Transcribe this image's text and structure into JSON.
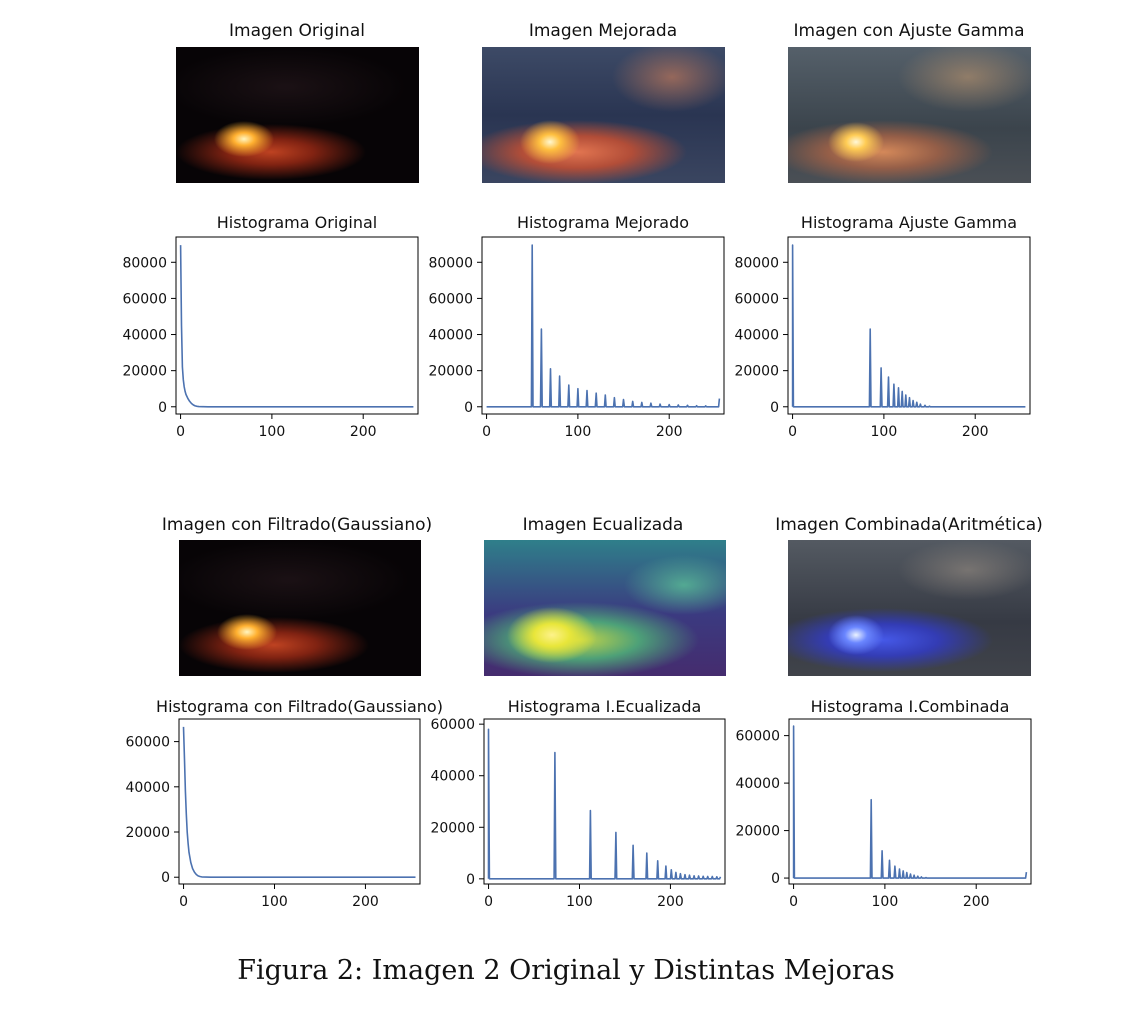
{
  "figure": {
    "caption": "Figura 2: Imagen 2 Original y Distintas Mejoras"
  },
  "images": [
    {
      "title": "Imagen Original",
      "style": "dark"
    },
    {
      "title": "Imagen Mejorada",
      "style": "enhanced"
    },
    {
      "title": "Imagen con Ajuste Gamma",
      "style": "gamma"
    },
    {
      "title": "Imagen con Filtrado(Gaussiano)",
      "style": "dark"
    },
    {
      "title": "Imagen Ecualizada",
      "style": "equalized"
    },
    {
      "title": "Imagen Combinada(Aritmética)",
      "style": "combined"
    }
  ],
  "chart_data": [
    {
      "type": "line",
      "title": "Histograma Original",
      "xlabel": "",
      "ylabel": "",
      "xlim": [
        -5,
        260
      ],
      "ylim": [
        -4000,
        94000
      ],
      "xticks": [
        0,
        100,
        200
      ],
      "yticks": [
        0,
        20000,
        40000,
        60000,
        80000
      ],
      "series": [
        {
          "x": [
            0,
            1,
            2,
            3,
            4,
            5,
            6,
            8,
            10,
            12,
            14,
            16,
            18,
            20,
            25,
            30,
            40,
            60,
            100,
            150,
            200,
            255
          ],
          "y": [
            89500,
            45000,
            22000,
            15000,
            11000,
            8500,
            6800,
            4500,
            3000,
            1800,
            1000,
            500,
            250,
            120,
            30,
            10,
            0,
            0,
            0,
            0,
            0,
            0
          ]
        }
      ],
      "color": "#4c72b0"
    },
    {
      "type": "line",
      "title": "Histograma Mejorado",
      "xlabel": "",
      "ylabel": "",
      "xlim": [
        -5,
        260
      ],
      "ylim": [
        -4000,
        94000
      ],
      "xticks": [
        0,
        100,
        200
      ],
      "yticks": [
        0,
        20000,
        40000,
        60000,
        80000
      ],
      "series": [
        {
          "peaks_x": [
            50,
            60,
            70,
            80,
            90,
            100,
            110,
            120,
            130,
            140,
            150,
            160,
            170,
            180,
            190,
            200,
            210,
            220,
            230,
            240,
            255
          ],
          "peaks_y": [
            89500,
            43000,
            21000,
            17000,
            12000,
            10000,
            9000,
            7500,
            6500,
            5000,
            4000,
            3000,
            2400,
            2000,
            1500,
            1200,
            1000,
            800,
            600,
            500,
            4500
          ],
          "range": [
            0,
            255
          ]
        }
      ],
      "color": "#4c72b0"
    },
    {
      "type": "line",
      "title": "Histograma Ajuste Gamma",
      "xlabel": "",
      "ylabel": "",
      "xlim": [
        -5,
        260
      ],
      "ylim": [
        -4000,
        94000
      ],
      "xticks": [
        0,
        100,
        200
      ],
      "yticks": [
        0,
        20000,
        40000,
        60000,
        80000
      ],
      "series": [
        {
          "peaks_x": [
            0,
            85,
            97,
            105,
            111,
            116,
            120,
            124,
            128,
            132,
            136,
            140,
            145,
            150
          ],
          "peaks_y": [
            89500,
            43000,
            21500,
            16500,
            12500,
            10500,
            8500,
            6500,
            5000,
            3500,
            2500,
            1500,
            800,
            300
          ],
          "range": [
            0,
            255
          ]
        }
      ],
      "color": "#4c72b0"
    },
    {
      "type": "line",
      "title": "Histograma con Filtrado(Gaussiano)",
      "xlabel": "",
      "ylabel": "",
      "xlim": [
        -5,
        260
      ],
      "ylim": [
        -3000,
        70000
      ],
      "xticks": [
        0,
        100,
        200
      ],
      "yticks": [
        0,
        20000,
        40000,
        60000
      ],
      "series": [
        {
          "x": [
            0,
            1,
            2,
            3,
            4,
            5,
            6,
            8,
            10,
            12,
            14,
            16,
            18,
            20,
            25,
            30,
            40,
            60,
            100,
            150,
            200,
            255
          ],
          "y": [
            66500,
            52000,
            38000,
            28000,
            20000,
            15000,
            11000,
            6500,
            3800,
            2200,
            1200,
            600,
            300,
            150,
            40,
            10,
            0,
            0,
            0,
            0,
            0,
            0
          ]
        }
      ],
      "color": "#4c72b0"
    },
    {
      "type": "line",
      "title": "Histograma I.Ecualizada",
      "xlabel": "",
      "ylabel": "",
      "xlim": [
        -5,
        260
      ],
      "ylim": [
        -2000,
        62000
      ],
      "xticks": [
        0,
        100,
        200
      ],
      "yticks": [
        0,
        20000,
        40000,
        60000
      ],
      "series": [
        {
          "peaks_x": [
            0,
            73,
            112,
            140,
            159,
            174,
            186,
            195,
            201,
            206,
            211,
            216,
            221,
            226,
            231,
            236,
            241,
            246,
            251,
            255
          ],
          "peaks_y": [
            58000,
            49000,
            26500,
            18000,
            13000,
            10000,
            7000,
            5000,
            3500,
            2500,
            2000,
            1600,
            1400,
            1200,
            1100,
            1000,
            900,
            900,
            800,
            800
          ],
          "range": [
            0,
            255
          ]
        }
      ],
      "color": "#4c72b0"
    },
    {
      "type": "line",
      "title": "Histograma I.Combinada",
      "xlabel": "",
      "ylabel": "",
      "xlim": [
        -5,
        260
      ],
      "ylim": [
        -2500,
        67000
      ],
      "xticks": [
        0,
        100,
        200
      ],
      "yticks": [
        0,
        20000,
        40000,
        60000
      ],
      "series": [
        {
          "peaks_x": [
            0,
            85,
            97,
            105,
            111,
            116,
            120,
            124,
            128,
            132,
            136,
            140,
            145,
            255
          ],
          "peaks_y": [
            64000,
            33000,
            11500,
            7500,
            5000,
            3800,
            3000,
            2300,
            1700,
            1200,
            800,
            500,
            200,
            2500
          ],
          "range": [
            0,
            255
          ]
        }
      ],
      "color": "#4c72b0"
    }
  ]
}
